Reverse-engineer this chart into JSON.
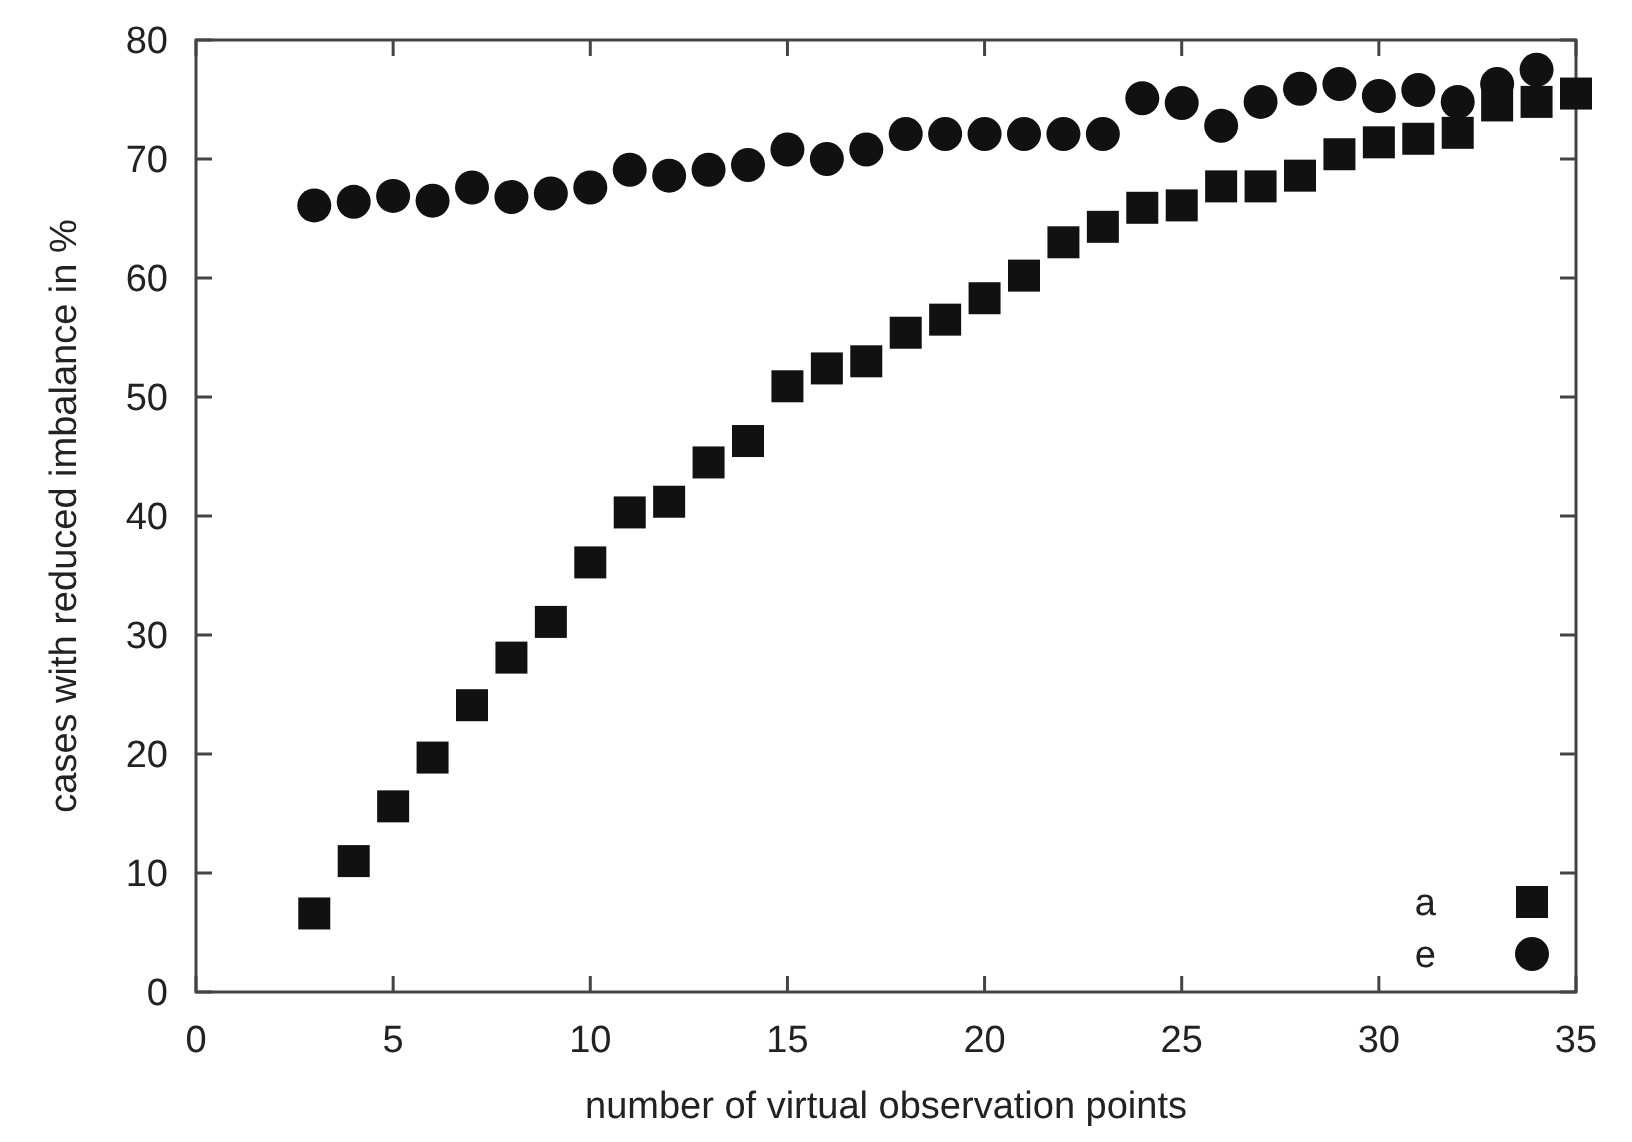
{
  "chart_data": {
    "type": "scatter",
    "xlabel": "number of virtual observation points",
    "ylabel": "cases with reduced imbalance in %",
    "x": [
      3,
      4,
      5,
      6,
      7,
      8,
      9,
      10,
      11,
      12,
      13,
      14,
      15,
      16,
      17,
      18,
      19,
      20,
      21,
      22,
      23,
      24,
      25,
      26,
      27,
      28,
      29,
      30,
      31,
      32,
      33,
      34,
      35
    ],
    "series": [
      {
        "name": "a",
        "color": "#111111",
        "marker": "square",
        "values": [
          6.6,
          11.0,
          15.6,
          19.7,
          24.1,
          28.1,
          31.1,
          36.1,
          40.3,
          41.2,
          44.5,
          46.3,
          50.9,
          52.4,
          53.0,
          55.4,
          56.5,
          58.3,
          60.2,
          63.0,
          64.3,
          65.9,
          66.1,
          67.7,
          67.7,
          68.6,
          70.4,
          71.4,
          71.7,
          72.2,
          74.5,
          74.8,
          75.5
        ]
      },
      {
        "name": "e",
        "color": "#111111",
        "marker": "circle",
        "values": [
          66.1,
          66.4,
          66.9,
          66.5,
          67.6,
          66.8,
          67.1,
          67.6,
          69.1,
          68.6,
          69.1,
          69.5,
          70.8,
          70.0,
          70.8,
          72.1,
          72.1,
          72.1,
          72.1,
          72.1,
          72.1,
          75.1,
          74.7,
          72.8,
          74.8,
          75.9,
          76.3,
          75.3,
          75.8,
          74.8,
          76.3,
          77.5,
          null
        ]
      }
    ],
    "xlim": [
      0,
      35
    ],
    "xticks": [
      0,
      5,
      10,
      15,
      20,
      25,
      30,
      35
    ],
    "ylim": [
      0,
      80
    ],
    "yticks": [
      0,
      10,
      20,
      30,
      40,
      50,
      60,
      70,
      80
    ],
    "grid": false,
    "legend": "bottom right"
  }
}
